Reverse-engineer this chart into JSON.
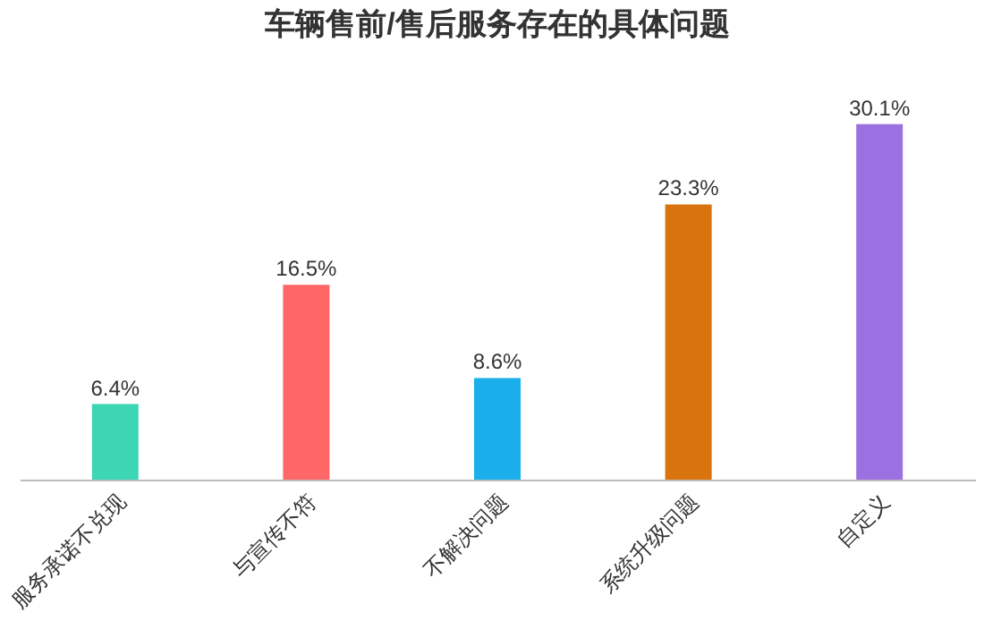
{
  "chart_data": {
    "type": "bar",
    "title": "车辆售前/售后服务存在的具体问题",
    "categories": [
      "服务承诺不兑现",
      "与宣传不符",
      "不解决问题",
      "系统升级问题",
      "自定义"
    ],
    "values": [
      6.4,
      16.5,
      8.6,
      23.3,
      30.1
    ],
    "colors": [
      "#3dd6b5",
      "#ff6666",
      "#1aaeea",
      "#d9730d",
      "#9b70e0"
    ],
    "value_labels": [
      "6.4%",
      "16.5%",
      "8.6%",
      "23.3%",
      "30.1%"
    ],
    "grid": false
  }
}
